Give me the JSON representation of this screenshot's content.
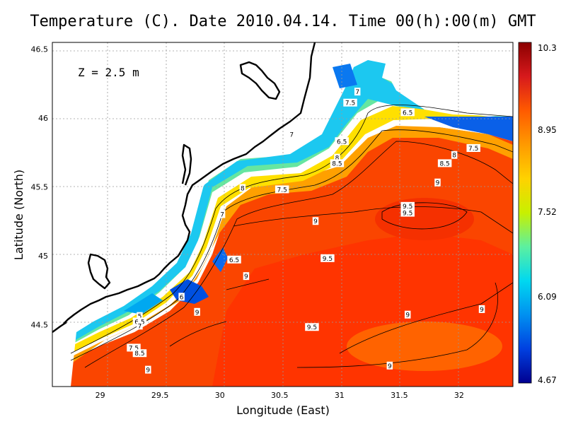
{
  "title": "Temperature (C). Date 2010.04.14. Time 00(h):00(m) GMT",
  "depth_label": "Z  =  2.5  m",
  "xlabel": "Longitude (East)",
  "ylabel": "Latitude (North)",
  "x_ticks": [
    "29",
    "29.5",
    "30",
    "30.5",
    "31",
    "31.5",
    "32"
  ],
  "y_ticks": [
    "44.5",
    "45",
    "45.5",
    "46",
    "46.5"
  ],
  "colorbar": {
    "labels": [
      "10.3",
      "8.95",
      "7.52",
      "6.09",
      "4.67"
    ],
    "colors": [
      "#8b0000",
      "#d7191c",
      "#ff5a00",
      "#ff9a00",
      "#ffd200",
      "#c8f000",
      "#5cf0a0",
      "#00d8f0",
      "#0090f0",
      "#0040e0",
      "#000090"
    ]
  },
  "chart_data": {
    "type": "heatmap",
    "variable": "Temperature",
    "unit": "C",
    "depth": "2.5 m",
    "date": "2010.04.14",
    "time": "00(h):00(m) GMT",
    "xlim": [
      28.6,
      32.45
    ],
    "ylim": [
      44.05,
      46.55
    ],
    "value_range": [
      4.67,
      10.3
    ],
    "grid": true,
    "colorbar_position": "right",
    "contour_labels": [
      {
        "text": "7",
        "lon": 31.15,
        "lat": 46.19
      },
      {
        "text": "7.5",
        "lon": 31.09,
        "lat": 46.11
      },
      {
        "text": "6.5",
        "lon": 31.57,
        "lat": 46.04
      },
      {
        "text": "7",
        "lon": 30.6,
        "lat": 45.88
      },
      {
        "text": "6.5",
        "lon": 31.02,
        "lat": 45.83
      },
      {
        "text": "7.5",
        "lon": 32.12,
        "lat": 45.78
      },
      {
        "text": "8",
        "lon": 31.96,
        "lat": 45.73
      },
      {
        "text": "8",
        "lon": 30.98,
        "lat": 45.71
      },
      {
        "text": "8.5",
        "lon": 30.98,
        "lat": 45.67
      },
      {
        "text": "8.5",
        "lon": 31.88,
        "lat": 45.67
      },
      {
        "text": "9",
        "lon": 31.82,
        "lat": 45.53
      },
      {
        "text": "8",
        "lon": 30.19,
        "lat": 45.49
      },
      {
        "text": "7.5",
        "lon": 30.52,
        "lat": 45.48
      },
      {
        "text": "9.5",
        "lon": 31.57,
        "lat": 45.36
      },
      {
        "text": "9.5",
        "lon": 31.57,
        "lat": 45.31
      },
      {
        "text": "7",
        "lon": 30.02,
        "lat": 45.3
      },
      {
        "text": "9",
        "lon": 30.8,
        "lat": 45.25
      },
      {
        "text": "9.5",
        "lon": 30.9,
        "lat": 44.98
      },
      {
        "text": "6.5",
        "lon": 30.12,
        "lat": 44.97
      },
      {
        "text": "9",
        "lon": 30.22,
        "lat": 44.85
      },
      {
        "text": "6",
        "lon": 29.68,
        "lat": 44.7
      },
      {
        "text": "9",
        "lon": 29.81,
        "lat": 44.59
      },
      {
        "text": "9",
        "lon": 31.57,
        "lat": 44.57
      },
      {
        "text": "9",
        "lon": 32.19,
        "lat": 44.61
      },
      {
        "text": "5",
        "lon": 29.33,
        "lat": 44.56
      },
      {
        "text": "6.5",
        "lon": 29.33,
        "lat": 44.52
      },
      {
        "text": "7",
        "lon": 29.33,
        "lat": 44.49
      },
      {
        "text": "9.5",
        "lon": 30.77,
        "lat": 44.48
      },
      {
        "text": "7.5",
        "lon": 29.28,
        "lat": 44.33
      },
      {
        "text": "8.5",
        "lon": 29.33,
        "lat": 44.29
      },
      {
        "text": "9",
        "lon": 29.4,
        "lat": 44.17
      },
      {
        "text": "9",
        "lon": 31.42,
        "lat": 44.2
      }
    ]
  }
}
